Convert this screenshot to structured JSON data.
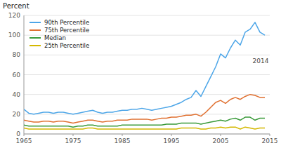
{
  "chart_data": {
    "type": "line",
    "y_label": "Percent",
    "x": [
      1965,
      1966,
      1967,
      1968,
      1969,
      1970,
      1971,
      1972,
      1973,
      1974,
      1975,
      1976,
      1977,
      1978,
      1979,
      1980,
      1981,
      1982,
      1983,
      1984,
      1985,
      1986,
      1987,
      1988,
      1989,
      1990,
      1991,
      1992,
      1993,
      1994,
      1995,
      1996,
      1997,
      1998,
      1999,
      2000,
      2001,
      2002,
      2003,
      2004,
      2005,
      2006,
      2007,
      2008,
      2009,
      2010,
      2011,
      2012,
      2013,
      2014
    ],
    "series": [
      {
        "name": "90th Percentile",
        "color": "#4da6e8",
        "values": [
          25,
          21,
          20,
          21,
          22,
          22,
          21,
          22,
          22,
          21,
          20,
          21,
          22,
          23,
          24,
          22,
          21,
          22,
          22,
          23,
          24,
          24,
          25,
          25,
          26,
          25,
          24,
          25,
          26,
          27,
          28,
          30,
          32,
          35,
          37,
          44,
          38,
          48,
          58,
          68,
          81,
          77,
          87,
          95,
          90,
          103,
          106,
          113,
          103,
          100
        ]
      },
      {
        "name": "75th Percentile",
        "color": "#e07030",
        "values": [
          14,
          13,
          12,
          12,
          13,
          13,
          12,
          13,
          13,
          12,
          11,
          12,
          13,
          14,
          14,
          13,
          12,
          13,
          13,
          14,
          14,
          14,
          15,
          15,
          15,
          15,
          14,
          15,
          16,
          16,
          17,
          17,
          18,
          19,
          19,
          20,
          18,
          22,
          27,
          32,
          34,
          31,
          35,
          37,
          35,
          38,
          40,
          39,
          37,
          37
        ]
      },
      {
        "name": "Median",
        "color": "#3a9a3a",
        "values": [
          9,
          8,
          8,
          8,
          8,
          8,
          8,
          8,
          8,
          8,
          7,
          8,
          8,
          9,
          9,
          8,
          8,
          8,
          8,
          8,
          9,
          9,
          9,
          9,
          9,
          9,
          9,
          9,
          9,
          10,
          10,
          10,
          11,
          11,
          11,
          11,
          10,
          11,
          12,
          13,
          14,
          13,
          15,
          16,
          14,
          17,
          17,
          14,
          16,
          16
        ]
      },
      {
        "name": "25th Percentile",
        "color": "#d4b800",
        "values": [
          6,
          5,
          5,
          5,
          5,
          5,
          5,
          5,
          5,
          5,
          5,
          5,
          5,
          6,
          6,
          5,
          5,
          5,
          5,
          5,
          5,
          5,
          5,
          5,
          5,
          5,
          5,
          5,
          5,
          5,
          5,
          5,
          6,
          6,
          6,
          6,
          5,
          5,
          6,
          6,
          7,
          6,
          7,
          7,
          5,
          7,
          6,
          5,
          6,
          6
        ]
      }
    ],
    "xlim": [
      1965,
      2015
    ],
    "ylim": [
      0,
      120
    ],
    "xticks": [
      1965,
      1975,
      1985,
      1995,
      2005,
      2015
    ],
    "yticks": [
      0,
      20,
      40,
      60,
      80,
      100,
      120
    ],
    "grid": true,
    "legend": "upper left",
    "annotations": [
      {
        "text": "2014",
        "x": 2011.5,
        "y": 72
      }
    ]
  }
}
